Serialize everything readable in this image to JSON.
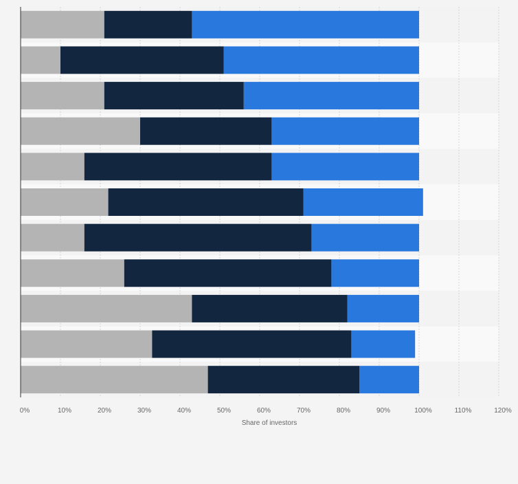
{
  "chart_data": {
    "type": "bar",
    "orientation": "horizontal",
    "stacked": true,
    "categories": [
      "",
      "",
      "",
      "",
      "",
      "",
      "",
      "",
      "",
      "",
      ""
    ],
    "series": [
      {
        "color": "#b4b4b4",
        "values": [
          21,
          10,
          21,
          30,
          16,
          22,
          16,
          26,
          43,
          33,
          47
        ]
      },
      {
        "color": "#12263f",
        "values": [
          22,
          41,
          35,
          33,
          47,
          49,
          57,
          52,
          39,
          50,
          38
        ]
      },
      {
        "color": "#2878de",
        "values": [
          57,
          49,
          44,
          37,
          37,
          30,
          27,
          22,
          18,
          16,
          15
        ]
      }
    ],
    "xlabel": "Share of investors",
    "ylabel": "",
    "xlim": [
      0,
      120
    ],
    "xticks": [
      0,
      10,
      20,
      30,
      40,
      50,
      60,
      70,
      80,
      90,
      100,
      110,
      120
    ],
    "xtick_labels": [
      "0%",
      "10%",
      "20%",
      "30%",
      "40%",
      "50%",
      "60%",
      "70%",
      "80%",
      "90%",
      "100%",
      "110%",
      "120%"
    ],
    "grid": true,
    "legend": "none"
  }
}
